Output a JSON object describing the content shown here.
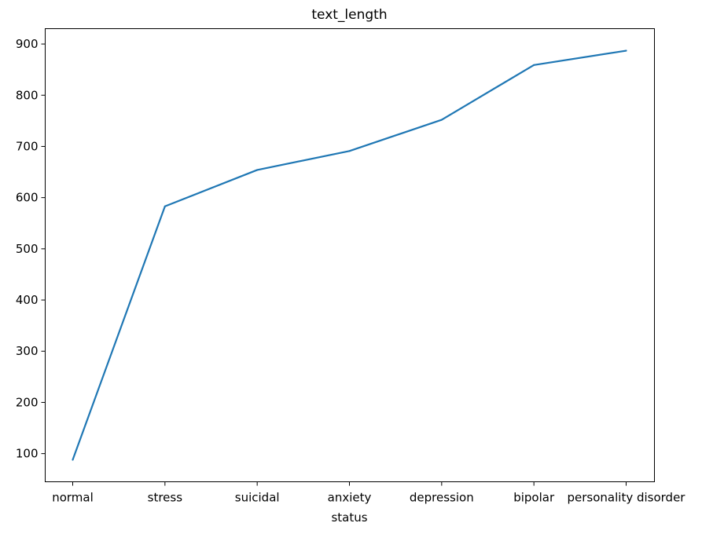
{
  "chart_data": {
    "type": "line",
    "title": "text_length",
    "xlabel": "status",
    "ylabel": "",
    "categories": [
      "normal",
      "stress",
      "suicidal",
      "anxiety",
      "depression",
      "bipolar",
      "personality disorder"
    ],
    "series": [
      {
        "values": [
          88,
          583,
          654,
          691,
          752,
          859,
          887
        ],
        "color": "#1f77b4"
      }
    ],
    "yticks": [
      100,
      200,
      300,
      400,
      500,
      600,
      700,
      800,
      900
    ],
    "ylim": [
      45,
      930
    ],
    "grid": false,
    "legend": "none"
  }
}
